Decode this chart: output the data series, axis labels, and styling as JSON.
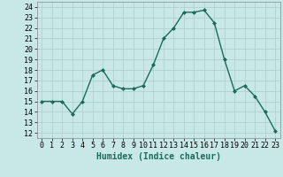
{
  "x": [
    0,
    1,
    2,
    3,
    4,
    5,
    6,
    7,
    8,
    9,
    10,
    11,
    12,
    13,
    14,
    15,
    16,
    17,
    18,
    19,
    20,
    21,
    22,
    23
  ],
  "y": [
    15,
    15,
    15,
    13.8,
    15,
    17.5,
    18,
    16.5,
    16.2,
    16.2,
    16.5,
    18.5,
    21,
    22,
    23.5,
    23.5,
    23.7,
    22.5,
    19,
    16,
    16.5,
    15.5,
    14,
    12.2
  ],
  "line_color": "#1a6b5a",
  "marker": "D",
  "marker_size": 2,
  "bg_color": "#c8e8e8",
  "grid_color": "#b0cccc",
  "xlabel": "Humidex (Indice chaleur)",
  "xlabel_fontsize": 7,
  "xtick_labels": [
    "0",
    "1",
    "2",
    "3",
    "4",
    "5",
    "6",
    "7",
    "8",
    "9",
    "10",
    "11",
    "12",
    "13",
    "14",
    "15",
    "16",
    "17",
    "18",
    "19",
    "20",
    "21",
    "22",
    "23"
  ],
  "ylim": [
    11.5,
    24.5
  ],
  "yticks": [
    12,
    13,
    14,
    15,
    16,
    17,
    18,
    19,
    20,
    21,
    22,
    23,
    24
  ],
  "xlim": [
    -0.5,
    23.5
  ],
  "tick_fontsize": 6
}
